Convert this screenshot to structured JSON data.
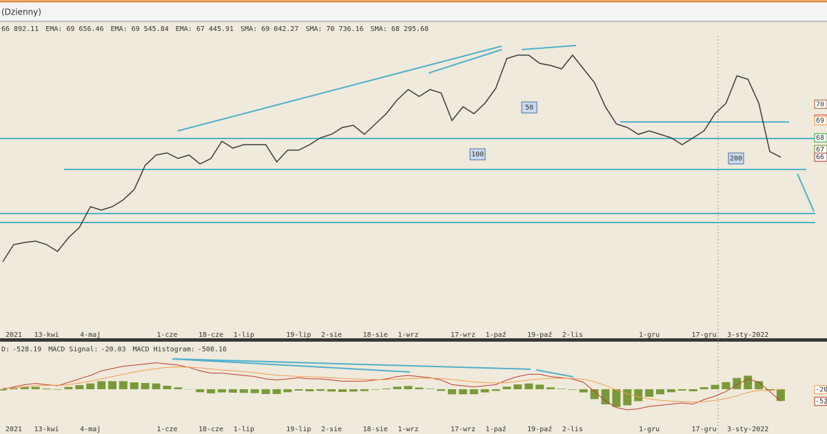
{
  "window": {
    "title": "(Dzienny)"
  },
  "chart_data": [
    {
      "type": "line",
      "categories": [
        null,
        "2021",
        null,
        null,
        "13-kwi",
        null,
        null,
        null,
        "4-maj",
        null,
        null,
        null,
        null,
        null,
        null,
        "1-cze",
        null,
        null,
        null,
        "18-cze",
        null,
        null,
        "1-lip",
        null,
        null,
        null,
        null,
        "19-lip",
        null,
        null,
        "2-sie",
        null,
        null,
        null,
        "18-sie",
        null,
        null,
        "1-wrz",
        null,
        null,
        null,
        null,
        "17-wrz",
        null,
        null,
        "1-paź",
        null,
        null,
        null,
        "19-paź",
        null,
        null,
        "2-lis",
        null,
        null,
        null,
        null,
        null,
        null,
        "1-gru",
        null,
        null,
        null,
        null,
        "17-gru",
        null,
        null,
        null,
        "3-sty-2022",
        null,
        null,
        null
      ],
      "series": [
        {
          "color": "#3a3a3a",
          "tag": "66",
          "values": [
            59300,
            60550,
            60700,
            60800,
            60550,
            60050,
            61050,
            61800,
            63300,
            63050,
            63300,
            63800,
            64550,
            66300,
            67050,
            67200,
            66800,
            67050,
            66400,
            66800,
            68050,
            67550,
            67800,
            67800,
            67800,
            66550,
            67400,
            67400,
            67800,
            68300,
            68550,
            69050,
            69200,
            68550,
            69300,
            70050,
            71050,
            71800,
            71300,
            71800,
            71550,
            69550,
            70550,
            70050,
            70800,
            71900,
            74050,
            74300,
            74300,
            73700,
            73550,
            73300,
            74300,
            73300,
            72300,
            70550,
            69300,
            69050,
            68550,
            68800,
            68550,
            68300,
            67800,
            68300,
            68800,
            70050,
            70800,
            72800,
            72550,
            70800,
            67300,
            66892.11
          ],
          "value_labels": [
            null,
            null,
            null,
            null,
            null,
            null,
            null,
            null,
            null,
            null,
            null,
            null,
            null,
            null,
            null,
            null,
            null,
            null,
            null,
            null,
            null,
            null,
            null,
            null,
            null,
            null,
            null,
            null,
            null,
            null,
            null,
            null,
            null,
            null,
            null,
            null,
            null,
            null,
            null,
            null,
            null,
            null,
            null,
            null,
            null,
            null,
            null,
            null,
            null,
            null,
            null,
            null,
            null,
            null,
            null,
            null,
            null,
            null,
            null,
            null,
            null,
            null,
            null,
            null,
            null,
            null,
            null,
            null,
            null,
            null,
            null,
            "66 892.11"
          ]
        }
      ],
      "indicators": [
        {
          "name": "EMA:",
          "value": 69656.46,
          "value_label": "69 656.46",
          "color": "#d0312d",
          "tag": "69"
        },
        {
          "name": "EMA:",
          "value": 69545.84,
          "value_label": "69 545.84",
          "color": "#f0913a",
          "tag": "69"
        },
        {
          "name": "EMA:",
          "value": 67445.91,
          "value_label": "67 445.91",
          "color": "#6b8e23",
          "tag": "67"
        },
        {
          "name": "SMA:",
          "value": 69042.27,
          "value_label": "69 042.27",
          "color": "#4a90d9"
        },
        {
          "name": "SMA:",
          "value": 70736.16,
          "value_label": "70 736.16",
          "color": "#a0522d",
          "tag": "70"
        },
        {
          "name": "SMA:",
          "value": 68295.68,
          "value_label": "68 295.68",
          "color": "#2ca02c",
          "tag": "68"
        }
      ],
      "annotations": [
        50,
        100,
        200
      ],
      "ylim": [
        54300,
        74800
      ]
    },
    {
      "type": "macd",
      "series": [
        {
          "name": "D:",
          "type": "line",
          "color": "#c0392b",
          "tag": "-52",
          "values": [
            0,
            100,
            200,
            250,
            200,
            150,
            300,
            450,
            600,
            800,
            900,
            1000,
            1050,
            1100,
            1150,
            1100,
            1050,
            950,
            800,
            700,
            700,
            650,
            600,
            550,
            450,
            400,
            450,
            500,
            450,
            450,
            400,
            350,
            350,
            350,
            400,
            450,
            550,
            600,
            550,
            500,
            400,
            200,
            150,
            100,
            150,
            200,
            400,
            550,
            650,
            650,
            550,
            500,
            450,
            300,
            -100,
            -500,
            -800,
            -900,
            -850,
            -750,
            -700,
            -650,
            -600,
            -650,
            -450,
            -300,
            -100,
            200,
            450,
            300,
            -100,
            -528.19
          ]
        },
        {
          "name": "MACD Signal:",
          "type": "line",
          "color": "#f39c4a",
          "tag": "-20",
          "values": [
            50,
            60,
            100,
            150,
            170,
            170,
            200,
            270,
            350,
            450,
            550,
            650,
            750,
            830,
            900,
            950,
            970,
            960,
            930,
            880,
            840,
            800,
            760,
            720,
            660,
            610,
            580,
            560,
            540,
            520,
            500,
            470,
            450,
            430,
            420,
            420,
            440,
            460,
            480,
            480,
            470,
            420,
            370,
            320,
            290,
            270,
            290,
            340,
            400,
            450,
            470,
            480,
            470,
            440,
            330,
            160,
            -30,
            -200,
            -330,
            -420,
            -480,
            -520,
            -540,
            -560,
            -540,
            -490,
            -410,
            -290,
            -140,
            -50,
            -60,
            -20.03
          ]
        },
        {
          "name": "MACD Histogram:",
          "type": "bar",
          "color": "#7a9a3a",
          "values": [
            -50,
            40,
            100,
            100,
            30,
            -20,
            100,
            180,
            250,
            350,
            350,
            350,
            300,
            270,
            250,
            150,
            80,
            -10,
            -130,
            -180,
            -140,
            -150,
            -160,
            -170,
            -210,
            -210,
            -130,
            -60,
            -90,
            -70,
            -100,
            -120,
            -100,
            -80,
            -20,
            30,
            110,
            140,
            70,
            20,
            -70,
            -220,
            -220,
            -220,
            -140,
            -70,
            110,
            210,
            250,
            200,
            80,
            20,
            -20,
            -140,
            -430,
            -660,
            -770,
            -700,
            -520,
            -330,
            -220,
            -130,
            -60,
            -90,
            90,
            190,
            310,
            490,
            590,
            350,
            -40,
            -508.16
          ]
        }
      ],
      "ylim": [
        -1500,
        1500
      ]
    }
  ]
}
